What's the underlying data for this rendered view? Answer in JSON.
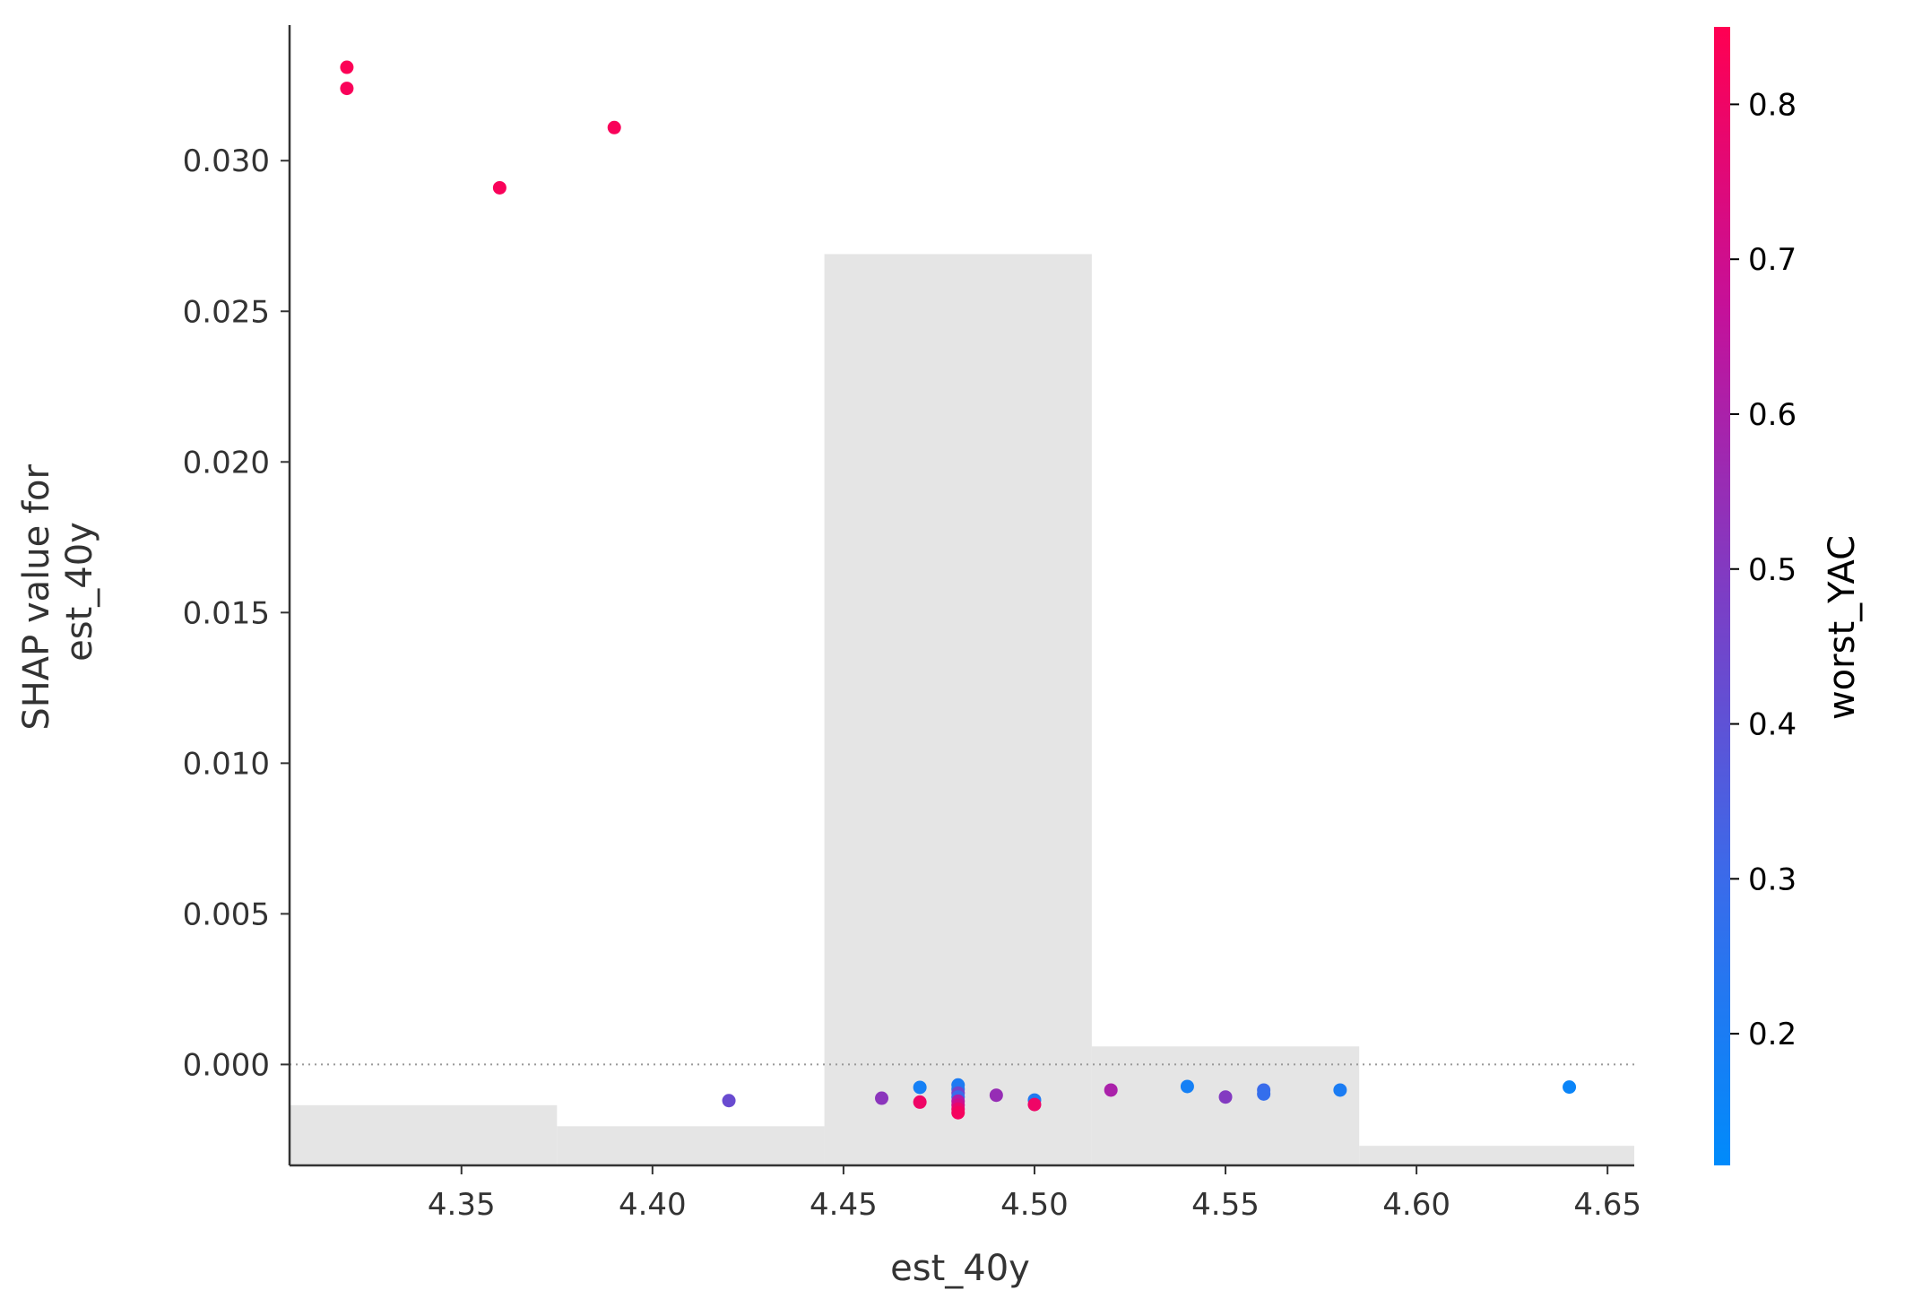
{
  "chart_data": {
    "type": "scatter",
    "xlabel": "est_40y",
    "ylabel": [
      "SHAP value for",
      "est_40y"
    ],
    "xlim": [
      4.305,
      4.657
    ],
    "ylim": [
      -0.00335,
      0.0345
    ],
    "x_ticks": [
      4.35,
      4.4,
      4.45,
      4.5,
      4.55,
      4.6,
      4.65
    ],
    "x_tick_labels": [
      "4.35",
      "4.40",
      "4.45",
      "4.50",
      "4.55",
      "4.60",
      "4.65"
    ],
    "y_ticks": [
      0.0,
      0.005,
      0.01,
      0.015,
      0.02,
      0.025,
      0.03
    ],
    "y_tick_labels": [
      "0.000",
      "0.005",
      "0.010",
      "0.015",
      "0.020",
      "0.025",
      "0.030"
    ],
    "zero_line": 0.0,
    "histogram": {
      "color": "#e5e5e5",
      "bins": [
        {
          "x0": 4.305,
          "x1": 4.375,
          "top": -0.00135
        },
        {
          "x0": 4.375,
          "x1": 4.445,
          "top": -0.00205
        },
        {
          "x0": 4.445,
          "x1": 4.515,
          "top": 0.0269
        },
        {
          "x0": 4.515,
          "x1": 4.585,
          "top": 0.0006
        },
        {
          "x0": 4.585,
          "x1": 4.657,
          "top": -0.0027
        }
      ]
    },
    "points": [
      {
        "x": 4.32,
        "y": 0.0331,
        "c": 0.84
      },
      {
        "x": 4.32,
        "y": 0.0324,
        "c": 0.83
      },
      {
        "x": 4.36,
        "y": 0.0291,
        "c": 0.83
      },
      {
        "x": 4.39,
        "y": 0.0311,
        "c": 0.83
      },
      {
        "x": 4.42,
        "y": -0.0012,
        "c": 0.43
      },
      {
        "x": 4.46,
        "y": -0.00112,
        "c": 0.52
      },
      {
        "x": 4.47,
        "y": -0.00076,
        "c": 0.18
      },
      {
        "x": 4.47,
        "y": -0.00125,
        "c": 0.8
      },
      {
        "x": 4.48,
        "y": -0.00068,
        "c": 0.2
      },
      {
        "x": 4.48,
        "y": -0.00082,
        "c": 0.22
      },
      {
        "x": 4.48,
        "y": -0.00095,
        "c": 0.45
      },
      {
        "x": 4.48,
        "y": -0.00108,
        "c": 0.3
      },
      {
        "x": 4.48,
        "y": -0.00122,
        "c": 0.62
      },
      {
        "x": 4.48,
        "y": -0.00135,
        "c": 0.7
      },
      {
        "x": 4.48,
        "y": -0.00148,
        "c": 0.78
      },
      {
        "x": 4.48,
        "y": -0.0016,
        "c": 0.82
      },
      {
        "x": 4.49,
        "y": -0.00102,
        "c": 0.55
      },
      {
        "x": 4.5,
        "y": -0.00118,
        "c": 0.22
      },
      {
        "x": 4.5,
        "y": -0.00133,
        "c": 0.8
      },
      {
        "x": 4.52,
        "y": -0.00085,
        "c": 0.6
      },
      {
        "x": 4.54,
        "y": -0.00073,
        "c": 0.18
      },
      {
        "x": 4.55,
        "y": -0.00108,
        "c": 0.5
      },
      {
        "x": 4.56,
        "y": -0.00085,
        "c": 0.3
      },
      {
        "x": 4.56,
        "y": -0.00098,
        "c": 0.28
      },
      {
        "x": 4.58,
        "y": -0.00085,
        "c": 0.2
      },
      {
        "x": 4.64,
        "y": -0.00075,
        "c": 0.15
      }
    ],
    "colorbar": {
      "title": "worst_YAC",
      "range": [
        0.115,
        0.85
      ],
      "ticks": [
        0.2,
        0.3,
        0.4,
        0.5,
        0.6,
        0.7,
        0.8
      ],
      "tick_labels": [
        "0.2",
        "0.3",
        "0.4",
        "0.5",
        "0.6",
        "0.7",
        "0.8"
      ],
      "colormap": [
        "#008bfb",
        "#ff0052"
      ],
      "colormap_stops": [
        {
          "offset": 0.0,
          "color": "#008bfb"
        },
        {
          "offset": 0.25,
          "color": "#3a6bea"
        },
        {
          "offset": 0.5,
          "color": "#7c3ec5"
        },
        {
          "offset": 0.75,
          "color": "#c4119a"
        },
        {
          "offset": 1.0,
          "color": "#ff0052"
        }
      ]
    }
  }
}
